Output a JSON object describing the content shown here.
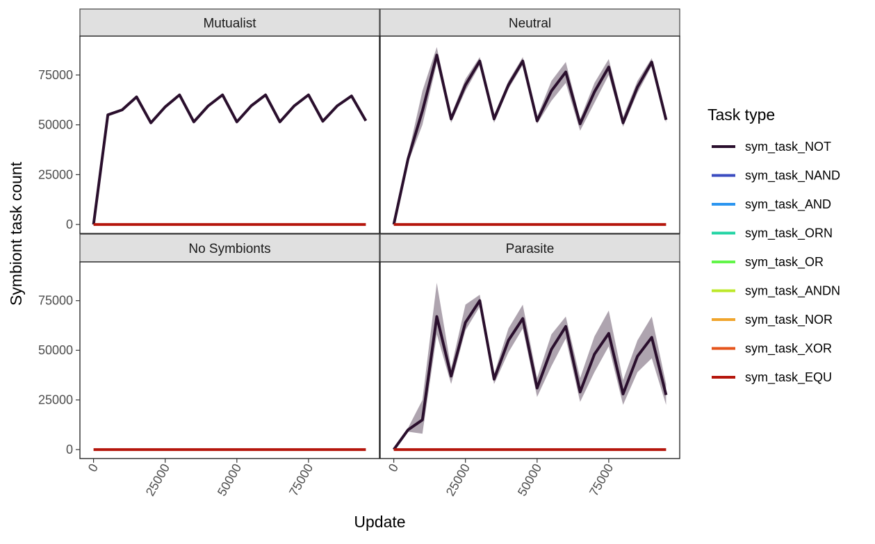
{
  "chart_data": {
    "type": "line",
    "facet_layout": "2x2 grid",
    "xlabel": "Update",
    "ylabel": "Symbiont task count",
    "x_ticks": [
      0,
      25000,
      50000,
      75000
    ],
    "x_tick_labels": [
      "0",
      "25000",
      "50000",
      "75000"
    ],
    "y_ticks": [
      0,
      25000,
      50000,
      75000
    ],
    "y_tick_labels": [
      "0",
      "25000",
      "50000",
      "75000"
    ],
    "xlim": [
      -4750,
      99750
    ],
    "ylim": [
      -4500,
      94500
    ],
    "grid": false,
    "legend": {
      "title": "Task type",
      "placement": "right",
      "entries": [
        {
          "name": "sym_task_NOT",
          "color": "#2a0f2d"
        },
        {
          "name": "sym_task_NAND",
          "color": "#3b4cc0"
        },
        {
          "name": "sym_task_AND",
          "color": "#2b95f0"
        },
        {
          "name": "sym_task_ORN",
          "color": "#24d4a4"
        },
        {
          "name": "sym_task_OR",
          "color": "#62f549"
        },
        {
          "name": "sym_task_ANDN",
          "color": "#bde82a"
        },
        {
          "name": "sym_task_NOR",
          "color": "#f0a52c"
        },
        {
          "name": "sym_task_XOR",
          "color": "#e5541b"
        },
        {
          "name": "sym_task_EQU",
          "color": "#b5160c"
        }
      ]
    },
    "x": [
      0,
      5000,
      10000,
      15000,
      20000,
      25000,
      30000,
      35000,
      40000,
      45000,
      50000,
      55000,
      60000,
      65000,
      70000,
      75000,
      80000,
      85000,
      90000,
      95000
    ],
    "facets": [
      {
        "label": "Mutualist",
        "series": [
          {
            "name": "sym_task_NOT",
            "values": [
              0,
              55000,
              57500,
              64000,
              51000,
              59000,
              65000,
              51500,
              59500,
              65000,
              51500,
              59500,
              65000,
              51500,
              59500,
              65000,
              51800,
              59500,
              64500,
              52000
            ],
            "lower": [
              0,
              55000,
              57500,
              64000,
              51000,
              59000,
              65000,
              51500,
              59500,
              65000,
              51500,
              59500,
              65000,
              51500,
              59500,
              65000,
              51800,
              59500,
              64500,
              52000
            ],
            "upper": [
              0,
              55000,
              57500,
              64000,
              51000,
              59000,
              65000,
              51500,
              59500,
              65000,
              51500,
              59500,
              65000,
              51500,
              59500,
              65000,
              51800,
              59500,
              64500,
              52000
            ]
          },
          {
            "name": "sym_task_EQU",
            "values": [
              0,
              0,
              0,
              0,
              0,
              0,
              0,
              0,
              0,
              0,
              0,
              0,
              0,
              0,
              0,
              0,
              0,
              0,
              0,
              0
            ]
          }
        ]
      },
      {
        "label": "Neutral",
        "series": [
          {
            "name": "sym_task_NOT",
            "values": [
              0,
              33000,
              57000,
              85000,
              53000,
              70000,
              82000,
              53000,
              70000,
              82000,
              52000,
              67000,
              76500,
              50500,
              66500,
              79000,
              51000,
              69000,
              81500,
              52500
            ],
            "lower": [
              0,
              31000,
              50000,
              81000,
              51000,
              67000,
              80000,
              51000,
              68000,
              80000,
              50500,
              62000,
              71000,
              47000,
              61000,
              75000,
              49000,
              66000,
              79500,
              51000
            ],
            "upper": [
              0,
              35000,
              67000,
              89000,
              55000,
              73000,
              84000,
              55000,
              72000,
              84000,
              54000,
              72000,
              81500,
              53000,
              71000,
              83000,
              54000,
              72000,
              83500,
              54000
            ]
          },
          {
            "name": "sym_task_EQU",
            "values": [
              0,
              0,
              0,
              0,
              0,
              0,
              0,
              0,
              0,
              0,
              0,
              0,
              0,
              0,
              0,
              0,
              0,
              0,
              0,
              0
            ]
          }
        ]
      },
      {
        "label": "No Symbionts",
        "series": [
          {
            "name": "sym_task_EQU",
            "values": [
              0,
              0,
              0,
              0,
              0,
              0,
              0,
              0,
              0,
              0,
              0,
              0,
              0,
              0,
              0,
              0,
              0,
              0,
              0,
              0
            ]
          }
        ]
      },
      {
        "label": "Parasite",
        "series": [
          {
            "name": "sym_task_NOT",
            "values": [
              0,
              10000,
              15000,
              67000,
              37000,
              64000,
              75000,
              35500,
              55000,
              66000,
              31000,
              50500,
              62000,
              29000,
              48000,
              58500,
              28000,
              47000,
              56500,
              27500
            ],
            "lower": [
              0,
              9000,
              8000,
              58000,
              33000,
              60000,
              72000,
              33000,
              49000,
              61000,
              26500,
              42000,
              56000,
              24000,
              39000,
              52000,
              22500,
              39000,
              46000,
              22500
            ],
            "upper": [
              0,
              11000,
              25000,
              84000,
              41000,
              73000,
              78000,
              38000,
              61000,
              73000,
              36000,
              58000,
              67000,
              36000,
              57000,
              70000,
              35000,
              55000,
              67000,
              33000
            ]
          },
          {
            "name": "sym_task_EQU",
            "values": [
              0,
              0,
              0,
              0,
              0,
              0,
              0,
              0,
              0,
              0,
              0,
              0,
              0,
              0,
              0,
              0,
              0,
              0,
              0,
              0
            ]
          }
        ]
      }
    ]
  }
}
